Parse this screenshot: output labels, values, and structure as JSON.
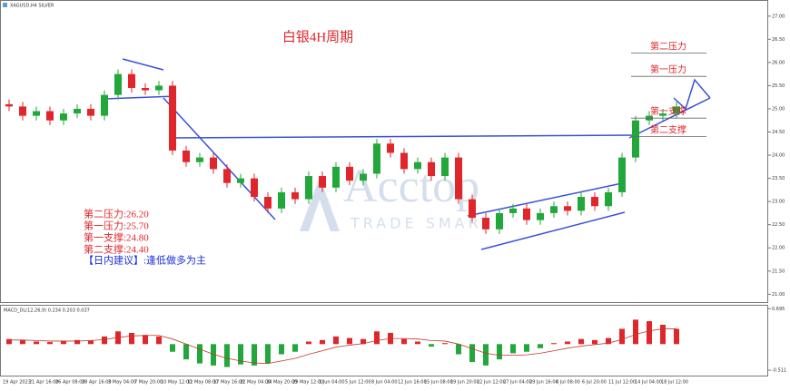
{
  "chart_data": {
    "type": "candlestick",
    "symbol_label": "XAGUSD,H4 SILVER",
    "title": "白银4H周期",
    "watermark": "Acctop",
    "watermark_sub": "TRADE SMART",
    "open": [
      25.1,
      25.05,
      24.85,
      24.95,
      24.75,
      24.9,
      25.0,
      24.85,
      25.3,
      25.75,
      25.45,
      25.4,
      25.5,
      24.1,
      23.85,
      23.95,
      23.7,
      23.4,
      23.5,
      23.1,
      22.85,
      23.2,
      23.05,
      23.55,
      23.3,
      23.75,
      23.45,
      23.6,
      24.25,
      24.05,
      23.7,
      23.85,
      23.55,
      23.95,
      23.05,
      22.65,
      22.4,
      22.75,
      22.85,
      22.6,
      22.75,
      22.9,
      22.8,
      23.1,
      22.9,
      23.2,
      23.95,
      24.75,
      24.85,
      24.9
    ],
    "high": [
      25.2,
      25.15,
      25.05,
      25.05,
      25.0,
      25.1,
      25.1,
      25.4,
      25.85,
      25.85,
      25.55,
      25.6,
      25.6,
      24.2,
      24.05,
      24.05,
      23.8,
      23.6,
      23.6,
      23.2,
      23.3,
      23.3,
      23.65,
      23.65,
      23.85,
      23.85,
      23.7,
      24.35,
      24.35,
      24.15,
      23.95,
      23.95,
      24.05,
      24.05,
      23.15,
      22.75,
      22.85,
      22.95,
      22.95,
      22.85,
      23.0,
      23.0,
      23.2,
      23.2,
      23.3,
      24.05,
      24.85,
      24.95,
      25.0,
      25.15
    ],
    "low": [
      24.95,
      24.75,
      24.75,
      24.65,
      24.65,
      24.8,
      24.75,
      24.75,
      25.2,
      25.35,
      25.3,
      25.3,
      24.0,
      23.75,
      23.75,
      23.6,
      23.3,
      23.3,
      23.0,
      22.75,
      22.75,
      22.95,
      22.95,
      23.2,
      23.2,
      23.35,
      23.35,
      23.5,
      23.95,
      23.6,
      23.6,
      23.45,
      23.45,
      22.95,
      22.55,
      22.3,
      22.3,
      22.65,
      22.5,
      22.5,
      22.65,
      22.7,
      22.7,
      22.8,
      22.8,
      23.1,
      23.85,
      24.65,
      24.75,
      24.8
    ],
    "close": [
      25.05,
      24.85,
      24.95,
      24.75,
      24.9,
      25.0,
      24.85,
      25.3,
      25.75,
      25.45,
      25.4,
      25.5,
      24.1,
      23.85,
      23.95,
      23.7,
      23.4,
      23.5,
      23.1,
      22.85,
      23.2,
      23.05,
      23.55,
      23.3,
      23.75,
      23.45,
      23.6,
      24.25,
      24.05,
      23.7,
      23.85,
      23.55,
      23.95,
      23.05,
      22.65,
      22.4,
      22.75,
      22.85,
      22.6,
      22.75,
      22.9,
      22.8,
      23.1,
      22.9,
      23.2,
      23.95,
      24.75,
      24.85,
      24.9,
      25.05
    ],
    "up_color": "#22a83a",
    "down_color": "#e0262a",
    "ylim": [
      20.85,
      27.25
    ],
    "yticks": [
      {
        "value": 21,
        "label": "21.00"
      },
      {
        "value": 21.5,
        "label": "21.50"
      },
      {
        "value": 22,
        "label": "22.00"
      },
      {
        "value": 22.5,
        "label": "22.50"
      },
      {
        "value": 23,
        "label": "23.00"
      },
      {
        "value": 23.5,
        "label": "23.50"
      },
      {
        "value": 24,
        "label": "24.00"
      },
      {
        "value": 24.5,
        "label": "24.50"
      },
      {
        "value": 25,
        "label": "25.00"
      },
      {
        "value": 25.5,
        "label": "25.50"
      },
      {
        "value": 26,
        "label": "26.00"
      },
      {
        "value": 26.5,
        "label": "26.50"
      },
      {
        "value": 27,
        "label": "27.00"
      }
    ],
    "levels": [
      {
        "label": "第二压力",
        "value": 26.2
      },
      {
        "label": "第一压力",
        "value": 25.7
      },
      {
        "label": "第一支撑",
        "value": 24.8
      },
      {
        "label": "第二支撑",
        "value": 24.4
      }
    ],
    "notes": [
      "第二压力:26.20",
      "第一压力:25.70",
      "第一支撑:24.80",
      "第二支撑:24.40"
    ],
    "advice": "【日内建议】:逢低做多为主",
    "time_labels": [
      "19 Apr 2023",
      "21 Apr 16:00",
      "26 Apr 08:00",
      "28 Apr 16:00",
      "3 May 04:00",
      "7 May 20:00",
      "10 May 12:00",
      "12 May 08:00",
      "17 May 16:00",
      "22 May 04:00",
      "24 May 20:00",
      "29 May 12:00",
      "1 Jun 04:00",
      "5 Jun 12:00",
      "8 Jun 04:00",
      "12 Jun 16:00",
      "15 Jun 08:00",
      "19 Jun 20:00",
      "22 Jun 12:00",
      "27 Jun 04:00",
      "29 Jun 16:00",
      "4 Jul 08:00",
      "6 Jul 20:00",
      "11 Jul 12:00",
      "14 Jul 04:00",
      "18 Jul 12:00"
    ],
    "macd": {
      "label": "MACD_DL(12,26,9) 0.234 0.203 0.037",
      "ylim": [
        -0.6,
        0.7
      ],
      "yticks": [
        {
          "value": 0.695,
          "label": "0.695"
        },
        {
          "value": -0.511,
          "label": "-0.511"
        }
      ],
      "histogram": [
        0.1,
        0.08,
        0.05,
        0.04,
        0.06,
        0.08,
        0.07,
        0.15,
        0.25,
        0.22,
        0.18,
        0.15,
        -0.15,
        -0.3,
        -0.38,
        -0.42,
        -0.45,
        -0.4,
        -0.42,
        -0.38,
        -0.2,
        -0.15,
        0.05,
        0.08,
        0.15,
        0.12,
        0.1,
        0.25,
        0.22,
        0.1,
        0.05,
        -0.05,
        0.02,
        -0.2,
        -0.35,
        -0.42,
        -0.3,
        -0.18,
        -0.15,
        -0.08,
        0.02,
        0.05,
        0.1,
        0.08,
        0.12,
        0.3,
        0.48,
        0.45,
        0.38,
        0.3
      ],
      "signal": [
        0.08,
        0.08,
        0.07,
        0.06,
        0.06,
        0.06,
        0.07,
        0.09,
        0.13,
        0.16,
        0.17,
        0.17,
        0.1,
        0.0,
        -0.1,
        -0.2,
        -0.28,
        -0.33,
        -0.37,
        -0.38,
        -0.33,
        -0.28,
        -0.2,
        -0.13,
        -0.06,
        -0.02,
        0.01,
        0.07,
        0.11,
        0.11,
        0.1,
        0.07,
        0.06,
        0.0,
        -0.09,
        -0.18,
        -0.22,
        -0.22,
        -0.21,
        -0.18,
        -0.13,
        -0.08,
        -0.04,
        -0.01,
        0.02,
        0.09,
        0.19,
        0.26,
        0.3,
        0.3
      ],
      "pos_color": "#e0262a",
      "neg_color": "#22a83a",
      "signal_color": "#c0392b"
    }
  }
}
